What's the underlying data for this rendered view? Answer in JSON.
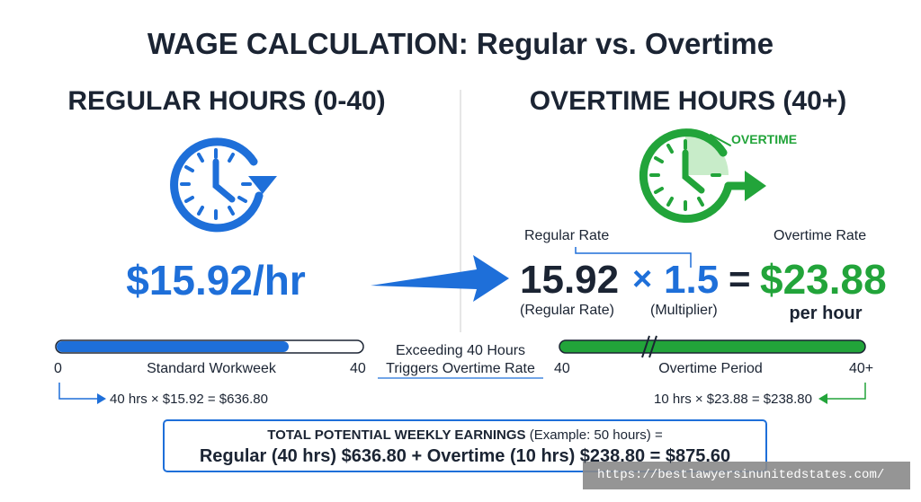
{
  "title": "WAGE CALCULATION: Regular vs. Overtime",
  "regular": {
    "heading": "REGULAR HOURS (0-40)",
    "rate": "$15.92/hr",
    "bar": {
      "start": "0",
      "label": "Standard Workweek",
      "end": "40"
    },
    "calc": "40 hrs × $15.92 = $636.80"
  },
  "transition": {
    "line1": "Exceeding 40 Hours",
    "line2": "Triggers Overtime Rate"
  },
  "overtime": {
    "heading": "OVERTIME HOURS (40+)",
    "clock_label": "OVERTIME",
    "formula": {
      "regular_rate_label": "Regular Rate",
      "regular_rate": "15.92",
      "times": "×",
      "multiplier": "1.5",
      "equals": "=",
      "result": "$23.88",
      "overtime_rate_label": "Overtime Rate",
      "regular_caption": "(Regular Rate)",
      "multiplier_caption": "(Multiplier)",
      "result_caption": "per hour"
    },
    "bar": {
      "start": "40",
      "label": "Overtime Period",
      "end": "40+"
    },
    "calc": "10 hrs × $23.88 = $238.80"
  },
  "total": {
    "heading": "TOTAL POTENTIAL WEEKLY EARNINGS",
    "note": "(Example: 50 hours) =",
    "sum": "Regular (40 hrs) $636.80 + Overtime (10 hrs) $238.80 = $875.60"
  },
  "watermark": "https://bestlawyersinunitedstates.com/"
}
